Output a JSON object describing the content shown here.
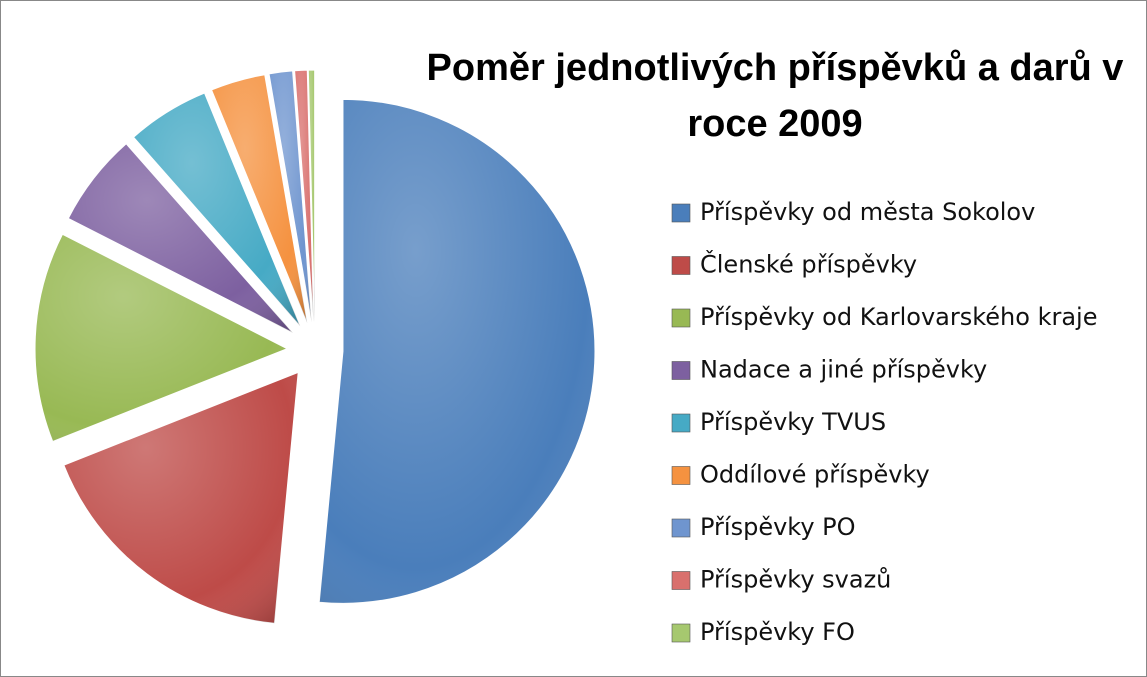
{
  "chart_data": {
    "type": "pie",
    "title": "Poměr jednotlivých příspěvků a darů v roce 2009",
    "categories": [
      "Příspěvky od města Sokolov",
      "Členské příspěvky",
      "Příspěvky od Karlovarského kraje",
      "Nadace a jiné příspěvky",
      "Příspěvky TVUS",
      "Oddílové příspěvky",
      "Příspěvky PO",
      "Příspěvky svazů",
      "Příspěvky FO"
    ],
    "values": [
      51.5,
      17.5,
      13.5,
      6,
      5.3,
      3.5,
      1.5,
      0.8,
      0.4
    ],
    "colors": [
      "#4a7ebb",
      "#be4b48",
      "#98b954",
      "#7d60a0",
      "#46aac5",
      "#f59240",
      "#6f95cf",
      "#d9706d",
      "#a6c86f"
    ],
    "legend": "right"
  }
}
